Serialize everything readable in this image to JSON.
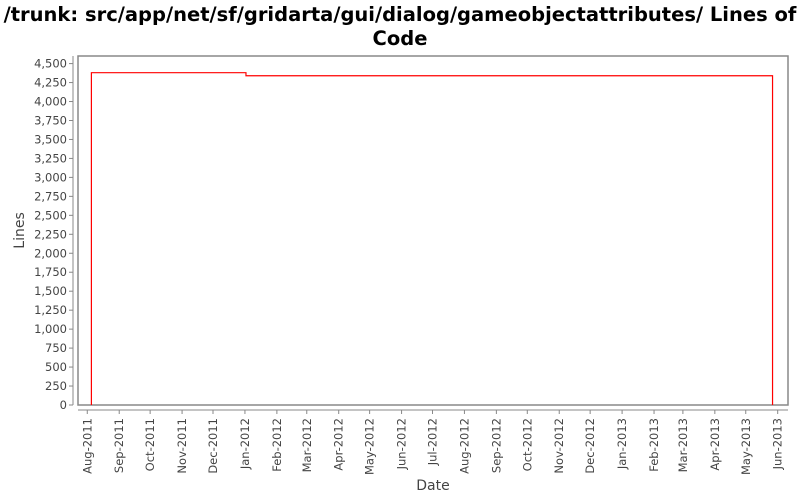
{
  "chart_data": {
    "type": "line",
    "title": "/trunk: src/app/net/sf/gridarta/gui/dialog/gameobjectattributes/ Lines of Code",
    "xlabel": "Date",
    "ylabel": "Lines",
    "ylim": [
      0,
      4600
    ],
    "xlim": [
      "2011-07-23",
      "2013-06-11"
    ],
    "yticks": [
      0,
      250,
      500,
      750,
      1000,
      1250,
      1500,
      1750,
      2000,
      2250,
      2500,
      2750,
      3000,
      3250,
      3500,
      3750,
      4000,
      4250,
      4500
    ],
    "ytick_labels": [
      "0",
      "250",
      "500",
      "750",
      "1,000",
      "1,250",
      "1,500",
      "1,750",
      "2,000",
      "2,250",
      "2,500",
      "2,750",
      "3,000",
      "3,250",
      "3,500",
      "3,750",
      "4,000",
      "4,250",
      "4,500"
    ],
    "xticks": [
      "2011-08-01",
      "2011-09-01",
      "2011-10-01",
      "2011-11-01",
      "2011-12-01",
      "2012-01-01",
      "2012-02-01",
      "2012-03-01",
      "2012-04-01",
      "2012-05-01",
      "2012-06-01",
      "2012-07-01",
      "2012-08-01",
      "2012-09-01",
      "2012-10-01",
      "2012-11-01",
      "2012-12-01",
      "2013-01-01",
      "2013-02-01",
      "2013-03-01",
      "2013-04-01",
      "2013-05-01",
      "2013-06-01"
    ],
    "xtick_labels": [
      "Aug-2011",
      "Sep-2011",
      "Oct-2011",
      "Nov-2011",
      "Dec-2011",
      "Jan-2012",
      "Feb-2012",
      "Mar-2012",
      "Apr-2012",
      "May-2012",
      "Jun-2012",
      "Jul-2012",
      "Aug-2012",
      "Sep-2012",
      "Oct-2012",
      "Nov-2012",
      "Dec-2012",
      "Jan-2013",
      "Feb-2013",
      "Mar-2013",
      "Apr-2013",
      "May-2013",
      "Jun-2013"
    ],
    "grid": false,
    "series": [
      {
        "color": "#ff0000",
        "step": true,
        "points": [
          [
            "2011-08-05",
            0
          ],
          [
            "2011-08-05",
            4380
          ],
          [
            "2012-01-02",
            4340
          ],
          [
            "2013-05-27",
            4340
          ],
          [
            "2013-05-27",
            0
          ]
        ]
      }
    ]
  }
}
